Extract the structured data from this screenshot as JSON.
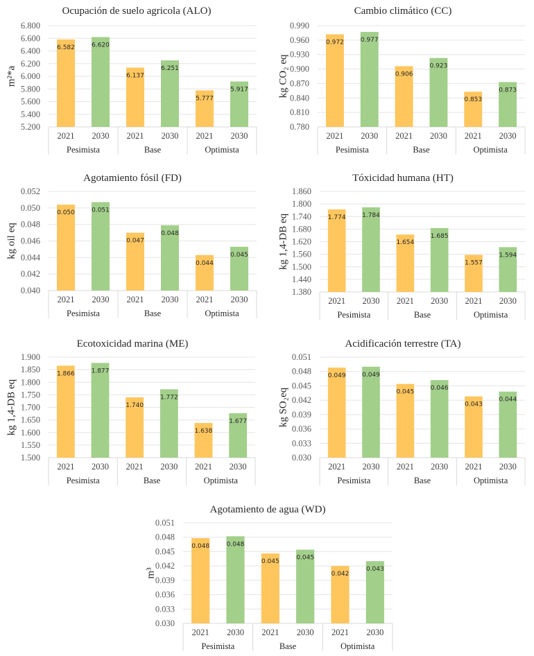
{
  "colors": {
    "year_2021": "#FFC65E",
    "year_2030": "#A2CF8A"
  },
  "chart_data": [
    {
      "id": "alo",
      "type": "bar",
      "title": "Ocupación de suelo agricola (ALO)",
      "ylabel": "m²*a",
      "ylim": [
        5.2,
        6.8
      ],
      "yticks": [
        "5.200",
        "5.400",
        "5.600",
        "5.800",
        "6.000",
        "6.200",
        "6.400",
        "6.600",
        "6.800"
      ],
      "ytick_values": [
        5.2,
        5.4,
        5.6,
        5.8,
        6.0,
        6.2,
        6.4,
        6.6,
        6.8
      ],
      "groups": [
        "Pesimista",
        "Base",
        "Optimista"
      ],
      "years": [
        "2021",
        "2030"
      ],
      "values": [
        6.582,
        6.62,
        6.137,
        6.251,
        5.777,
        5.917
      ],
      "labels": [
        "6.582",
        "6.620",
        "6.137",
        "6.251",
        "5.777",
        "5.917"
      ],
      "grid": true
    },
    {
      "id": "cc",
      "type": "bar",
      "title": "Cambio climático (CC)",
      "ylabel": "kg CO₂ eq",
      "ylim": [
        0.78,
        0.99
      ],
      "yticks": [
        "0.780",
        "0.810",
        "0.840",
        "0.870",
        "0.900",
        "0.930",
        "0.960",
        "0.990"
      ],
      "ytick_values": [
        0.78,
        0.81,
        0.84,
        0.87,
        0.9,
        0.93,
        0.96,
        0.99
      ],
      "groups": [
        "Pesimista",
        "Base",
        "Optimista"
      ],
      "years": [
        "2021",
        "2030"
      ],
      "values": [
        0.972,
        0.977,
        0.906,
        0.923,
        0.853,
        0.873
      ],
      "labels": [
        "0.972",
        "0.977",
        "0.906",
        "0.923",
        "0.853",
        "0.873"
      ],
      "grid": true
    },
    {
      "id": "fd",
      "type": "bar",
      "title": "Agotamiento fósil (FD)",
      "ylabel": "kg oil eq",
      "ylim": [
        0.04,
        0.052
      ],
      "yticks": [
        "0.040",
        "0.042",
        "0.044",
        "0.046",
        "0.048",
        "0.050",
        "0.052"
      ],
      "ytick_values": [
        0.04,
        0.042,
        0.044,
        0.046,
        0.048,
        0.05,
        0.052
      ],
      "groups": [
        "Pesimista",
        "Base",
        "Optimista"
      ],
      "years": [
        "2021",
        "2030"
      ],
      "values": [
        0.0504,
        0.0507,
        0.047,
        0.0479,
        0.0443,
        0.0453
      ],
      "labels": [
        "0.050",
        "0.051",
        "0.047",
        "0.048",
        "0.044",
        "0.045"
      ],
      "grid": true
    },
    {
      "id": "ht",
      "type": "bar",
      "title": "Tóxicidad humana (HT)",
      "ylabel": "kg 1,4-DB eq",
      "ylim": [
        1.38,
        1.86
      ],
      "yticks": [
        "1.380",
        "1.440",
        "1.500",
        "1.560",
        "1.620",
        "1.680",
        "1.740",
        "1.800",
        "1.860"
      ],
      "ytick_values": [
        1.38,
        1.44,
        1.5,
        1.56,
        1.62,
        1.68,
        1.74,
        1.8,
        1.86
      ],
      "groups": [
        "Pesimista",
        "Base",
        "Optimista"
      ],
      "years": [
        "2021",
        "2030"
      ],
      "values": [
        1.774,
        1.784,
        1.654,
        1.685,
        1.557,
        1.594
      ],
      "labels": [
        "1.774",
        "1.784",
        "1.654",
        "1.685",
        "1.557",
        "1.594"
      ],
      "grid": true
    },
    {
      "id": "me",
      "type": "bar",
      "title": "Ecotoxicidad marina (ME)",
      "ylabel": "kg 1,4-DB eq",
      "ylim": [
        1.5,
        1.9
      ],
      "yticks": [
        "1.500",
        "1.550",
        "1.600",
        "1.650",
        "1.700",
        "1.750",
        "1.800",
        "1.850",
        "1.900"
      ],
      "ytick_values": [
        1.5,
        1.55,
        1.6,
        1.65,
        1.7,
        1.75,
        1.8,
        1.85,
        1.9
      ],
      "groups": [
        "Pesimista",
        "Base",
        "Optimista"
      ],
      "years": [
        "2021",
        "2030"
      ],
      "values": [
        1.866,
        1.877,
        1.74,
        1.772,
        1.638,
        1.677
      ],
      "labels": [
        "1.866",
        "1.877",
        "1.740",
        "1.772",
        "1.638",
        "1.677"
      ],
      "grid": true
    },
    {
      "id": "ta",
      "type": "bar",
      "title": "Acidificación  terrestre (TA)",
      "ylabel": "kg SO₂eq",
      "ylim": [
        0.03,
        0.051
      ],
      "yticks": [
        "0.030",
        "0.033",
        "0.036",
        "0.039",
        "0.042",
        "0.045",
        "0.048",
        "0.051"
      ],
      "ytick_values": [
        0.03,
        0.033,
        0.036,
        0.039,
        0.042,
        0.045,
        0.048,
        0.051
      ],
      "groups": [
        "Pesimista",
        "Base",
        "Optimista"
      ],
      "years": [
        "2021",
        "2030"
      ],
      "values": [
        0.0488,
        0.049,
        0.0454,
        0.0462,
        0.0428,
        0.0438
      ],
      "labels": [
        "0.049",
        "0.049",
        "0.045",
        "0.046",
        "0.043",
        "0.044"
      ],
      "grid": true
    },
    {
      "id": "wd",
      "type": "bar",
      "title": "Agotamiento de agua (WD)",
      "ylabel": "m³",
      "ylim": [
        0.03,
        0.051
      ],
      "yticks": [
        "0.030",
        "0.033",
        "0.036",
        "0.039",
        "0.042",
        "0.045",
        "0.048",
        "0.051"
      ],
      "ytick_values": [
        0.03,
        0.033,
        0.036,
        0.039,
        0.042,
        0.045,
        0.048,
        0.051
      ],
      "groups": [
        "Pesimista",
        "Base",
        "Optimista"
      ],
      "years": [
        "2021",
        "2030"
      ],
      "values": [
        0.0478,
        0.0482,
        0.0446,
        0.0454,
        0.042,
        0.043
      ],
      "labels": [
        "0.048",
        "0.048",
        "0.045",
        "0.045",
        "0.042",
        "0.043"
      ],
      "grid": true
    }
  ]
}
